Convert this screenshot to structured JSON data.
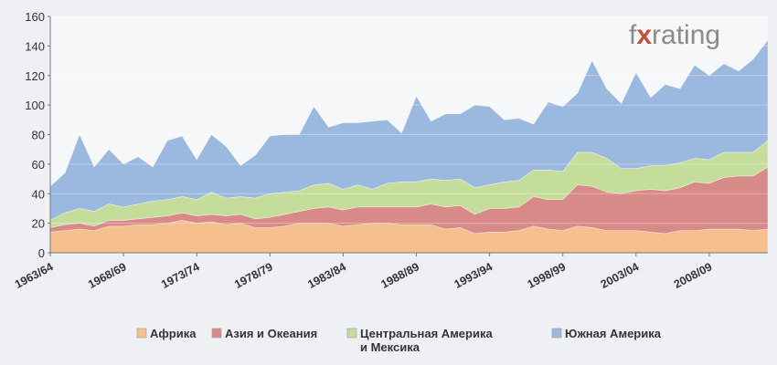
{
  "brand": {
    "prefix": "f",
    "mark": "x",
    "suffix": "rating"
  },
  "chart_data": {
    "type": "area",
    "stacked": true,
    "title": "",
    "xlabel": "",
    "ylabel": "",
    "ylim": [
      0,
      160
    ],
    "yticks": [
      0,
      20,
      40,
      60,
      80,
      100,
      120,
      140,
      160
    ],
    "grid": true,
    "legend_position": "bottom",
    "x_tick_labels": [
      "1963/64",
      "1968/69",
      "1973/74",
      "1978/79",
      "1983/84",
      "1988/89",
      "1993/94",
      "1998/99",
      "2003/04",
      "2008/09"
    ],
    "x_tick_years": [
      1963,
      1968,
      1973,
      1978,
      1983,
      1988,
      1993,
      1998,
      2003,
      2008
    ],
    "x": [
      1963,
      1964,
      1965,
      1966,
      1967,
      1968,
      1969,
      1970,
      1971,
      1972,
      1973,
      1974,
      1975,
      1976,
      1977,
      1978,
      1979,
      1980,
      1981,
      1982,
      1983,
      1984,
      1985,
      1986,
      1987,
      1988,
      1989,
      1990,
      1991,
      1992,
      1993,
      1994,
      1995,
      1996,
      1997,
      1998,
      1999,
      2000,
      2001,
      2002,
      2003,
      2004,
      2005,
      2006,
      2007,
      2008,
      2009,
      2010,
      2011,
      2012
    ],
    "series": [
      {
        "name": "Африка",
        "color": "#f5c08e",
        "values": [
          14,
          15,
          16,
          15,
          18,
          18,
          19,
          19,
          20,
          22,
          20,
          21,
          19,
          20,
          17,
          17,
          18,
          20,
          20,
          20,
          18,
          19,
          20,
          20,
          19,
          19,
          19,
          16,
          17,
          13,
          14,
          14,
          15,
          18,
          16,
          15,
          18,
          17,
          15,
          15,
          15,
          14,
          13,
          15,
          15,
          16,
          16,
          16,
          15,
          16
        ]
      },
      {
        "name": "Азия и Океания",
        "color": "#d88a88",
        "values": [
          3,
          4,
          4,
          3,
          4,
          4,
          4,
          5,
          5,
          5,
          5,
          5,
          6,
          6,
          6,
          7,
          8,
          8,
          10,
          11,
          11,
          12,
          11,
          11,
          12,
          12,
          14,
          15,
          15,
          13,
          16,
          16,
          16,
          20,
          20,
          21,
          28,
          28,
          26,
          25,
          27,
          29,
          29,
          29,
          33,
          31,
          35,
          36,
          37,
          42
        ]
      },
      {
        "name": "Центральная Америка и Мексика",
        "color": "#c5dd9a",
        "values": [
          5,
          8,
          10,
          10,
          11,
          9,
          10,
          11,
          11,
          11,
          11,
          15,
          12,
          12,
          14,
          16,
          15,
          14,
          16,
          16,
          14,
          15,
          12,
          16,
          17,
          17,
          17,
          18,
          18,
          18,
          16,
          18,
          18,
          18,
          20,
          19,
          22,
          23,
          23,
          17,
          15,
          16,
          17,
          17,
          16,
          16,
          17,
          16,
          16,
          18
        ]
      },
      {
        "name": "Южная Америка",
        "color": "#9bb8de",
        "values": [
          23,
          27,
          50,
          30,
          37,
          29,
          32,
          23,
          40,
          41,
          27,
          39,
          35,
          21,
          29,
          39,
          39,
          38,
          53,
          38,
          45,
          42,
          46,
          43,
          33,
          58,
          39,
          45,
          44,
          56,
          53,
          42,
          42,
          31,
          46,
          44,
          40,
          62,
          47,
          44,
          65,
          46,
          55,
          50,
          63,
          57,
          60,
          55,
          63,
          68
        ]
      }
    ],
    "legend": [
      {
        "label_lines": [
          "Африка"
        ],
        "color": "#f5c08e"
      },
      {
        "label_lines": [
          "Азия и Океания"
        ],
        "color": "#d88a88"
      },
      {
        "label_lines": [
          "Центральная Америка",
          "и Мексика"
        ],
        "color": "#c5dd9a"
      },
      {
        "label_lines": [
          "Южная Америка"
        ],
        "color": "#9bb8de"
      }
    ]
  }
}
